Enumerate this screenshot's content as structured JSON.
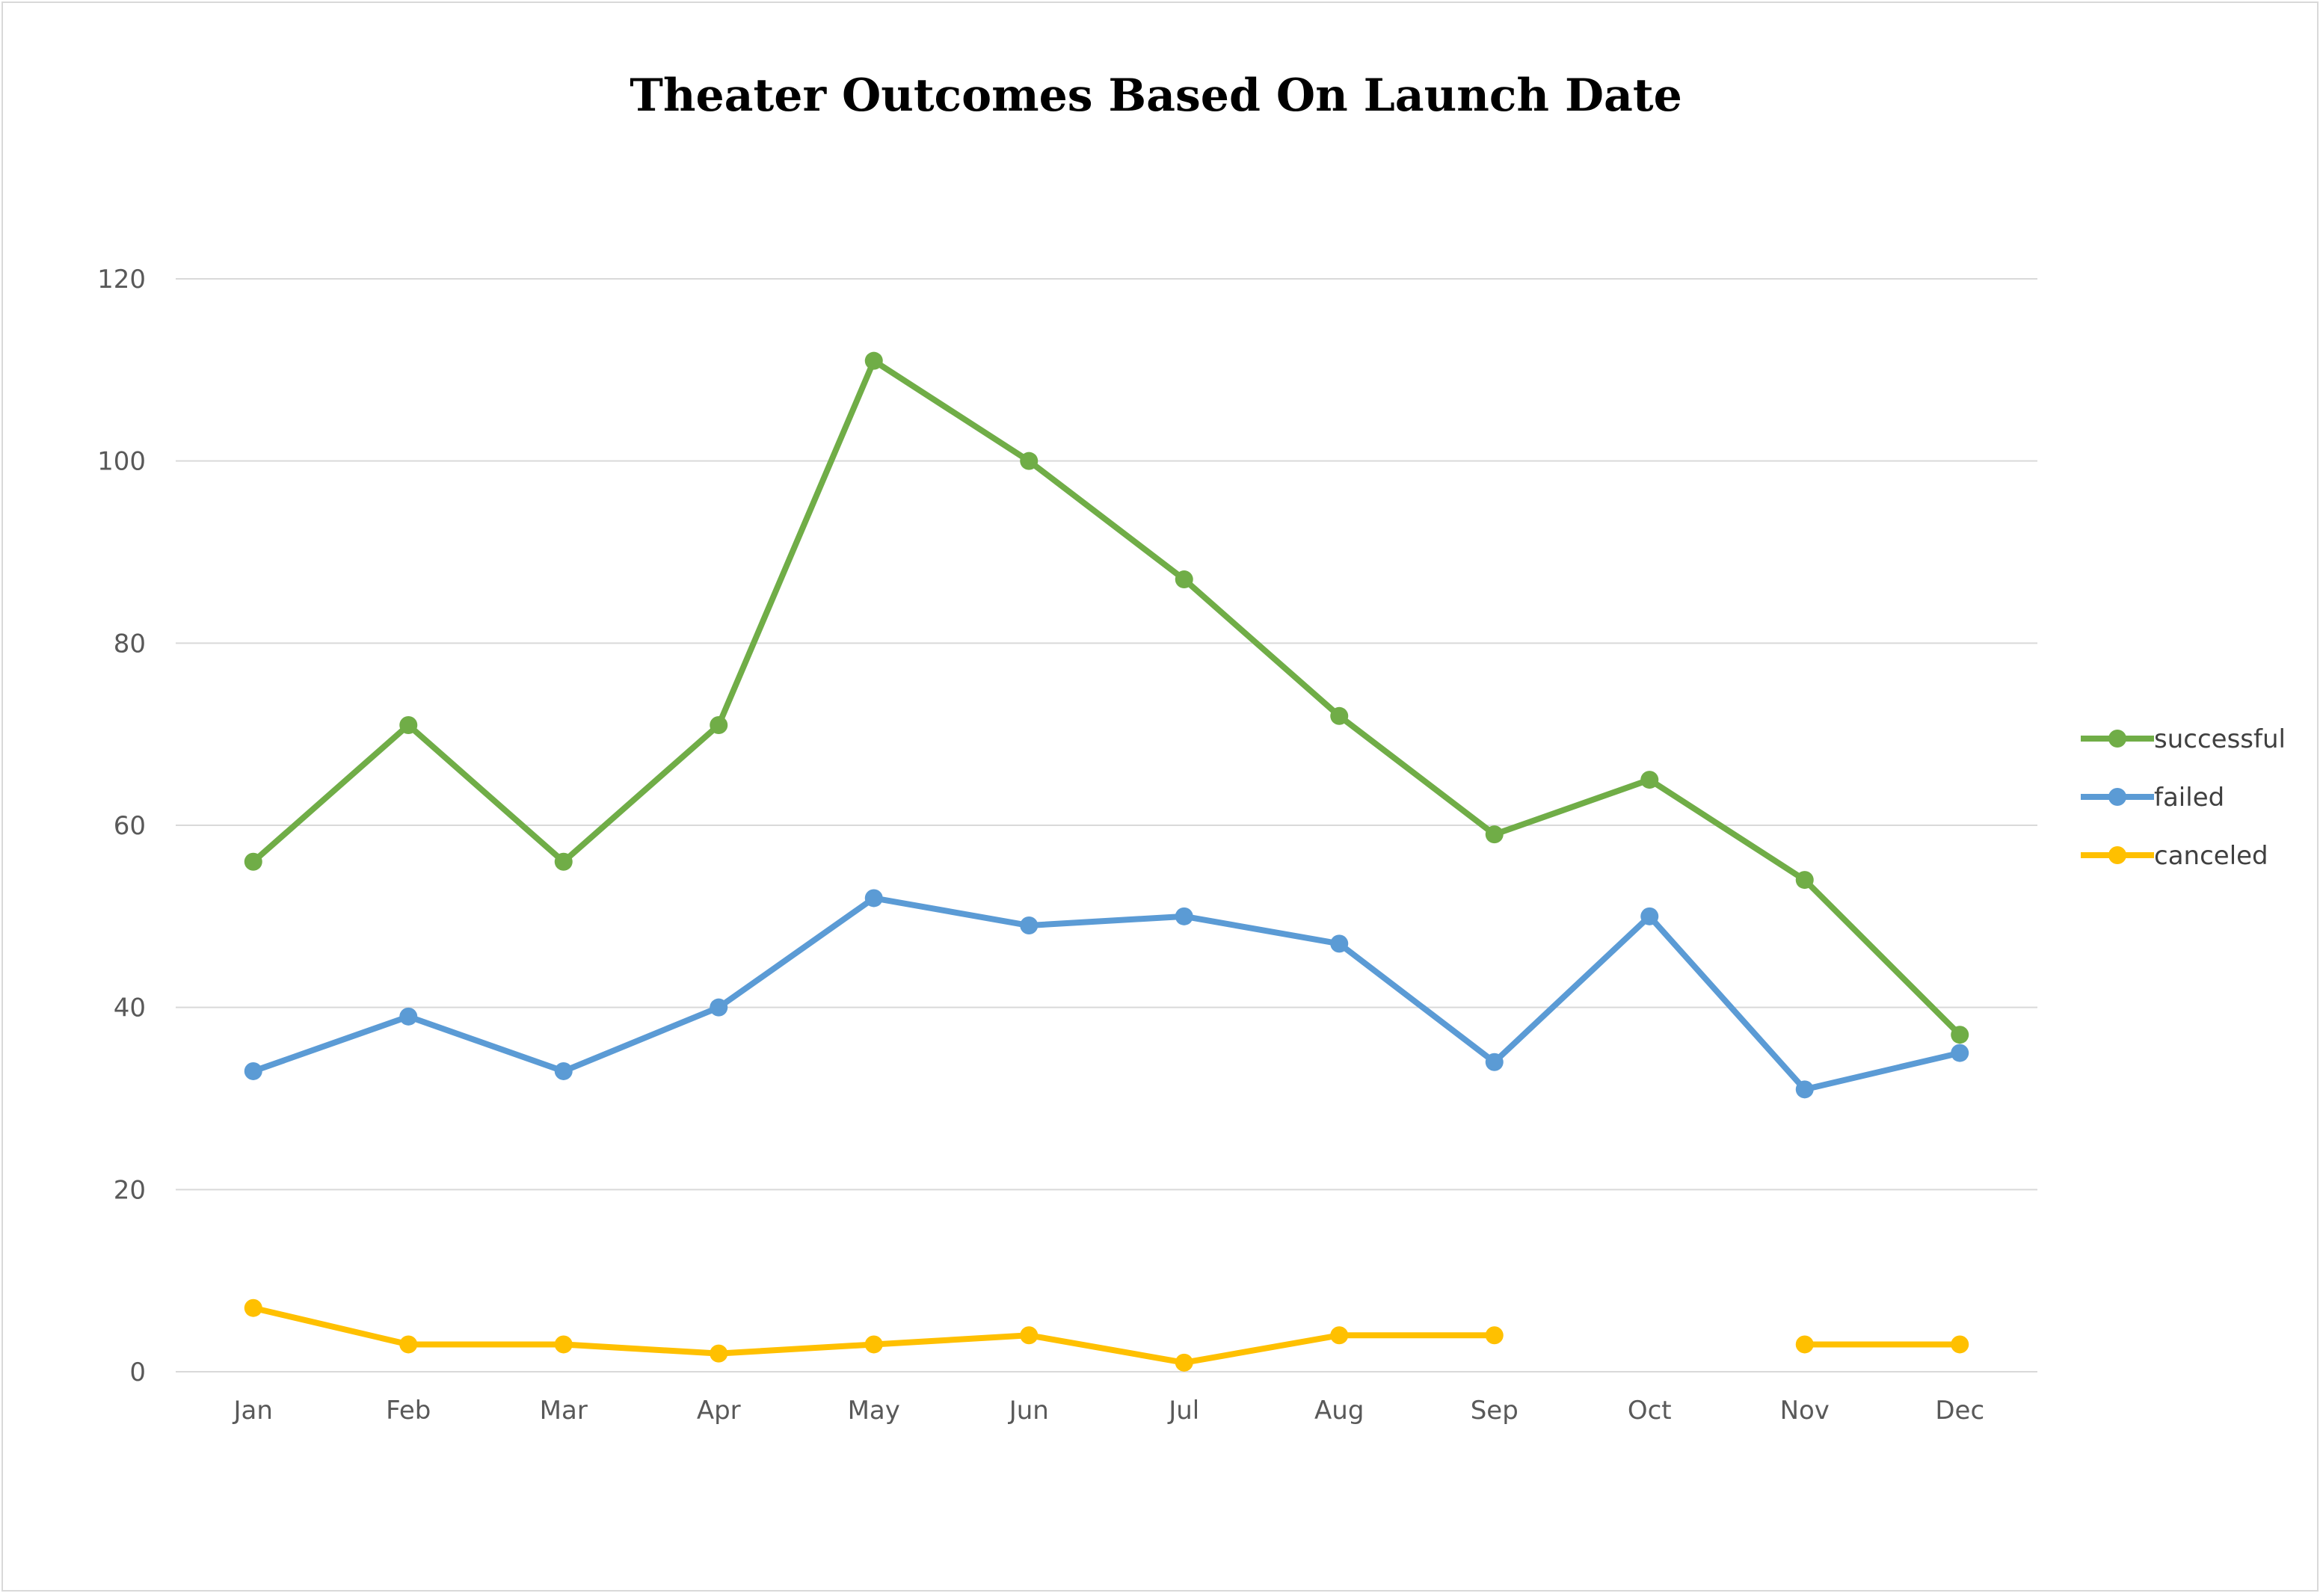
{
  "chart_data": {
    "type": "line",
    "title": "Theater Outcomes Based On Launch Date",
    "xlabel": "",
    "ylabel": "",
    "categories": [
      "Jan",
      "Feb",
      "Mar",
      "Apr",
      "May",
      "Jun",
      "Jul",
      "Aug",
      "Sep",
      "Oct",
      "Nov",
      "Dec"
    ],
    "ylim": [
      0,
      120
    ],
    "yticks": [
      0,
      20,
      40,
      60,
      80,
      100,
      120
    ],
    "grid": true,
    "legend_position": "right",
    "series": [
      {
        "name": "successful",
        "color": "#70ad47",
        "values": [
          56,
          71,
          56,
          71,
          111,
          100,
          87,
          72,
          59,
          65,
          54,
          37
        ]
      },
      {
        "name": "failed",
        "color": "#5b9bd5",
        "values": [
          33,
          39,
          33,
          40,
          52,
          49,
          50,
          47,
          34,
          50,
          31,
          35
        ]
      },
      {
        "name": "canceled",
        "color": "#ffc000",
        "values": [
          7,
          3,
          3,
          2,
          3,
          4,
          1,
          4,
          4,
          null,
          3,
          3
        ]
      }
    ]
  }
}
